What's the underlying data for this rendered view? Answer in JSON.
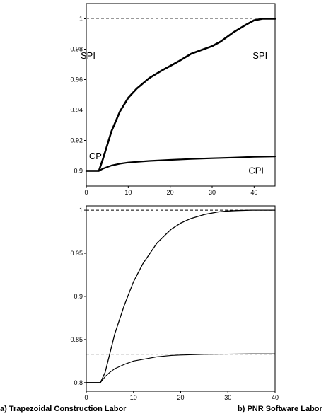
{
  "chart_data": [
    {
      "type": "line",
      "title": "",
      "xlabel": "",
      "ylabel": "",
      "xlim": [
        0,
        45
      ],
      "ylim": [
        0.89,
        1.01
      ],
      "xticks": [
        "0",
        "10",
        "20",
        "30",
        "40"
      ],
      "yticks": [
        "0.9",
        "0.92",
        "0.94",
        "0.96",
        "0.98",
        "1"
      ],
      "grid": false,
      "reference_lines": [
        1.0,
        0.9
      ],
      "annotations": [
        {
          "text": "SPI",
          "x": 0,
          "y": 0.976
        },
        {
          "text": "SPI",
          "x": 41,
          "y": 0.976
        },
        {
          "text": "CPI",
          "x": 2,
          "y": 0.91
        },
        {
          "text": "CPI",
          "x": 40,
          "y": 0.9005
        }
      ],
      "series": [
        {
          "name": "",
          "x": [
            0,
            3,
            4,
            5,
            6,
            8,
            10,
            12,
            15,
            18,
            20,
            22,
            25,
            28,
            30,
            32,
            35,
            38,
            40,
            42,
            45
          ],
          "y": [
            0.9,
            0.9,
            0.908,
            0.917,
            0.926,
            0.939,
            0.948,
            0.954,
            0.961,
            0.966,
            0.969,
            0.972,
            0.977,
            0.98,
            0.982,
            0.985,
            0.991,
            0.996,
            0.999,
            1.0,
            1.0
          ]
        },
        {
          "name": "",
          "x": [
            0,
            3,
            4,
            6,
            8,
            10,
            15,
            20,
            25,
            30,
            35,
            40,
            45
          ],
          "y": [
            0.9,
            0.9,
            0.9015,
            0.9035,
            0.9047,
            0.9055,
            0.9065,
            0.9072,
            0.9078,
            0.9083,
            0.9087,
            0.9092,
            0.9095
          ]
        }
      ]
    },
    {
      "type": "line",
      "title": "",
      "xlabel": "",
      "ylabel": "",
      "xlim": [
        0,
        40
      ],
      "ylim": [
        0.79,
        1.005
      ],
      "xticks": [
        "0",
        "10",
        "20",
        "30",
        "40"
      ],
      "yticks": [
        "0.8",
        "0.85",
        "0.9",
        "0.95",
        "1"
      ],
      "grid": false,
      "reference_lines": [
        1.0,
        0.833
      ],
      "series": [
        {
          "name": "",
          "x": [
            0,
            3,
            4,
            5,
            6,
            8,
            10,
            12,
            15,
            18,
            20,
            22,
            25,
            28,
            30,
            32,
            35,
            38,
            40
          ],
          "y": [
            0.8,
            0.8,
            0.812,
            0.834,
            0.856,
            0.889,
            0.917,
            0.938,
            0.962,
            0.978,
            0.985,
            0.99,
            0.995,
            0.998,
            0.999,
            0.9995,
            1.0,
            1.0,
            1.0
          ]
        },
        {
          "name": "",
          "x": [
            0,
            3,
            4,
            5,
            6,
            8,
            10,
            12,
            15,
            18,
            20,
            25,
            30,
            35,
            40
          ],
          "y": [
            0.8,
            0.8,
            0.807,
            0.812,
            0.816,
            0.821,
            0.825,
            0.827,
            0.83,
            0.8315,
            0.832,
            0.8328,
            0.8331,
            0.8333,
            0.8333
          ]
        }
      ]
    }
  ],
  "captions": {
    "left": "a) Trapezoidal Construction Labor",
    "right": "b) PNR Software Labor"
  }
}
